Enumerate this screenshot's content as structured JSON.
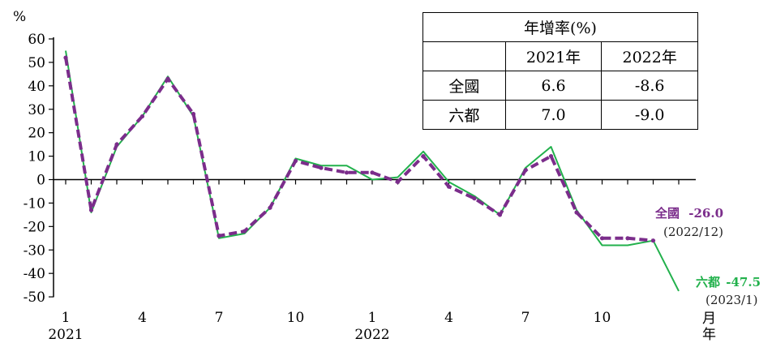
{
  "chart_data": {
    "type": "line",
    "y_unit_label": "%",
    "xlabel": [
      "月",
      "年"
    ],
    "ylim": [
      -50,
      60
    ],
    "yticks": [
      60,
      50,
      40,
      30,
      20,
      10,
      0,
      -10,
      -20,
      -30,
      -40,
      -50
    ],
    "x_tick_labels": [
      {
        "month": "1",
        "year": "2021",
        "index": 0
      },
      {
        "month": "4",
        "index": 3
      },
      {
        "month": "7",
        "index": 6
      },
      {
        "month": "10",
        "index": 9
      },
      {
        "month": "1",
        "year": "2022",
        "index": 12
      },
      {
        "month": "4",
        "index": 15
      },
      {
        "month": "7",
        "index": 18
      },
      {
        "month": "10",
        "index": 21
      }
    ],
    "series": [
      {
        "name": "全國",
        "color": "#7b2d8b",
        "style": "dashed",
        "values": [
          52,
          -13,
          15,
          27,
          43,
          28,
          -24,
          -22,
          -12,
          8,
          5,
          3,
          3,
          -1,
          10,
          -3,
          -8,
          -15,
          4,
          10,
          -14,
          -25,
          -25,
          -26
        ]
      },
      {
        "name": "六都",
        "color": "#22b14c",
        "style": "solid",
        "values": [
          55,
          -14,
          14,
          27,
          44,
          27,
          -25,
          -23,
          -12,
          9,
          6,
          6,
          0,
          1,
          12,
          -1,
          -7,
          -15,
          5,
          14,
          -13,
          -28,
          -28,
          -26,
          -47.5
        ]
      }
    ],
    "annotations": [
      {
        "label": "全國",
        "value": "-26.0",
        "date": "(2022/12)",
        "color": "#7b2d8b"
      },
      {
        "label": "六都",
        "value": "-47.5",
        "date": "(2023/1)",
        "color": "#22b14c"
      }
    ],
    "table": {
      "title": "年增率(%)",
      "columns": [
        "",
        "2021年",
        "2022年"
      ],
      "rows": [
        {
          "label": "全國",
          "values": [
            "6.6",
            "-8.6"
          ]
        },
        {
          "label": "六都",
          "values": [
            "7.0",
            "-9.0"
          ]
        }
      ]
    }
  }
}
